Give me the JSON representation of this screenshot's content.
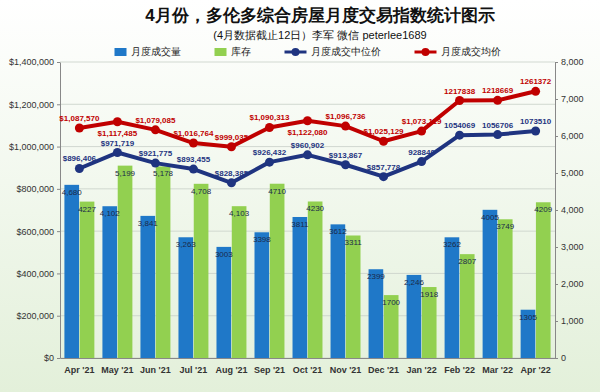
{
  "chart_data": {
    "type": "bar",
    "title": "4月份，多伦多综合房屋月度交易指数统计图示",
    "subtitle": "(4月数据截止12日）李军  微信 peterlee1689",
    "categories": [
      "Apr '21",
      "May '21",
      "Jun '21",
      "Jul '21",
      "Aug '21",
      "Sep '21",
      "Oct '21",
      "Nov '21",
      "Dec '21",
      "Jan '22",
      "Feb '22",
      "Mar '22",
      "Apr '22"
    ],
    "series": [
      {
        "name": "月度成交量",
        "type": "bar",
        "axis": "y2",
        "color": "#1f78c8",
        "values": [
          4680,
          4102,
          3841,
          3263,
          3003,
          3398,
          3811,
          3612,
          2399,
          2246,
          3262,
          4005,
          1305
        ],
        "value_labels": [
          "4,680",
          "4,102",
          "3,841",
          "3,263",
          "3003",
          "3398",
          "3811",
          "3612",
          "2399",
          "2,246",
          "3262",
          "4005",
          "1305"
        ]
      },
      {
        "name": "库存",
        "type": "bar",
        "axis": "y2",
        "color": "#92d050",
        "values": [
          4227,
          5199,
          5178,
          4708,
          4103,
          4710,
          4230,
          3311,
          1700,
          1918,
          2807,
          3749,
          4209
        ],
        "value_labels": [
          "4227",
          "5,199",
          "5,178",
          "4,708",
          "4,103",
          "4710",
          "4230",
          "3311",
          "1700",
          "1918",
          "2807",
          "3749",
          "4209"
        ]
      },
      {
        "name": "月度成交中位价",
        "type": "line",
        "color": "#1f3480",
        "marker": "circle",
        "values": [
          896406,
          971719,
          921775,
          893455,
          828385,
          926432,
          960902,
          913867,
          857778,
          928840,
          1054069,
          1056706,
          1073510
        ],
        "value_labels": [
          "$896,406",
          "$971,719",
          "$921,775",
          "$893,455",
          "$828,385",
          "$926,432",
          "$960,902",
          "$913,867",
          "$857,778",
          "928840",
          "1054069",
          "1056706",
          "1073510"
        ]
      },
      {
        "name": "月度成交均价",
        "type": "line",
        "color": "#c00000",
        "marker": "circle",
        "values": [
          1087570,
          1117485,
          1079085,
          1016764,
          999035,
          1090313,
          1122080,
          1096736,
          1025129,
          1073119,
          1217838,
          1218669,
          1261372
        ],
        "value_labels": [
          "$1,087,570",
          "$1,117,485",
          "$1,079,085",
          "$1,016,764",
          "$999,035",
          "$1,090,313",
          "$1,122,080",
          "$1,096,736",
          "$1,025,129",
          "$1,073,119",
          "1217838",
          "1218669",
          "1261372"
        ]
      }
    ],
    "ylim": [
      0,
      1400000
    ],
    "yticks": [
      {
        "value": 0,
        "label": "$0"
      },
      {
        "value": 200000,
        "label": "$200,000"
      },
      {
        "value": 400000,
        "label": "$400,000"
      },
      {
        "value": 600000,
        "label": "$600,000"
      },
      {
        "value": 800000,
        "label": "$800,000"
      },
      {
        "value": 1000000,
        "label": "$1,000,000"
      },
      {
        "value": 1200000,
        "label": "$1,200,000"
      },
      {
        "value": 1400000,
        "label": "$1,400,000"
      }
    ],
    "y2lim": [
      0,
      8000
    ],
    "y2ticks": [
      0,
      {
        "value": 1000,
        "label": "1,000"
      },
      {
        "value": 2000,
        "label": "2,000"
      },
      {
        "value": 3000,
        "label": "3,000"
      },
      {
        "value": 4000,
        "label": "4,000"
      },
      {
        "value": 5000,
        "label": "5,000"
      },
      {
        "value": 6000,
        "label": "6,000"
      },
      {
        "value": 7000,
        "label": "7,000"
      },
      {
        "value": 8000,
        "label": "8,000"
      }
    ],
    "grid": true,
    "legend": "top",
    "data_labels": true
  }
}
